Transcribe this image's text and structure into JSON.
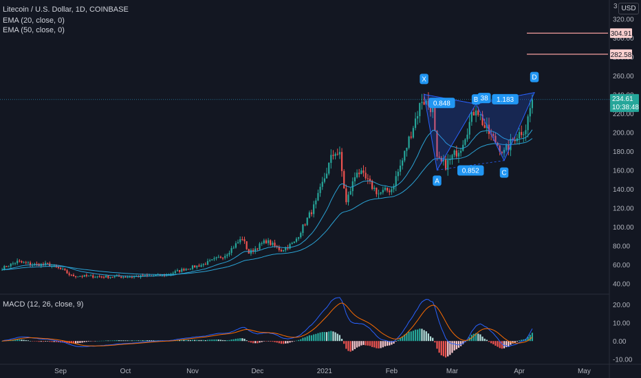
{
  "legend": {
    "symbol": "Litecoin / U.S. Dollar, 1D, COINBASE",
    "ema20": "EMA (20, close, 0)",
    "ema50": "EMA (50, close, 0)",
    "macd": "MACD (12, 26, close, 9)"
  },
  "currency": "USD",
  "price_label": {
    "value": "234.61",
    "countdown": "10:38:48"
  },
  "levels": [
    {
      "label": "304.91",
      "value": 304.91
    },
    {
      "label": "282.58",
      "value": 282.58
    }
  ],
  "colors": {
    "background": "#131722",
    "up": "#26a69a",
    "down": "#ef5350",
    "ema_line": "#2ba4d6",
    "pattern": "#2962ff",
    "macd_line": "#2962ff",
    "signal_line": "#ff6d00",
    "level_line": "#f7a1a0"
  },
  "chart_data": {
    "type": "candlestick",
    "price_axis": {
      "ticks": [
        "40.00",
        "60.00",
        "80.00",
        "100.00",
        "120.00",
        "140.00",
        "160.00",
        "180.00",
        "200.00",
        "220.00",
        "240.00",
        "260.00",
        "280.00",
        "300.00",
        "320.00"
      ],
      "range": [
        30,
        340
      ],
      "partial_top_tick": "3"
    },
    "time_axis": {
      "ticks": [
        "Sep",
        "Oct",
        "Nov",
        "Dec",
        "2021",
        "Feb",
        "Mar",
        "Apr",
        "May"
      ]
    },
    "price_anchors": [
      [
        "2020-08-05",
        56
      ],
      [
        "2020-08-12",
        63
      ],
      [
        "2020-08-19",
        60
      ],
      [
        "2020-08-26",
        60
      ],
      [
        "2020-09-02",
        54
      ],
      [
        "2020-09-06",
        48
      ],
      [
        "2020-09-20",
        47
      ],
      [
        "2020-10-05",
        47
      ],
      [
        "2020-10-20",
        49
      ],
      [
        "2020-10-28",
        55
      ],
      [
        "2020-11-06",
        60
      ],
      [
        "2020-11-16",
        70
      ],
      [
        "2020-11-24",
        88
      ],
      [
        "2020-11-27",
        72
      ],
      [
        "2020-12-05",
        85
      ],
      [
        "2020-12-12",
        75
      ],
      [
        "2020-12-18",
        83
      ],
      [
        "2020-12-28",
        125
      ],
      [
        "2021-01-04",
        172
      ],
      [
        "2021-01-06",
        180
      ],
      [
        "2021-01-08",
        175
      ],
      [
        "2021-01-11",
        125
      ],
      [
        "2021-01-16",
        160
      ],
      [
        "2021-01-26",
        135
      ],
      [
        "2021-02-01",
        140
      ],
      [
        "2021-02-06",
        170
      ],
      [
        "2021-02-10",
        200
      ],
      [
        "2021-02-15",
        235
      ],
      [
        "2021-02-20",
        225
      ],
      [
        "2021-02-22",
        170
      ],
      [
        "2021-02-26",
        165
      ],
      [
        "2021-03-05",
        185
      ],
      [
        "2021-03-12",
        228
      ],
      [
        "2021-03-16",
        205
      ],
      [
        "2021-03-25",
        178
      ],
      [
        "2021-03-30",
        195
      ],
      [
        "2021-04-04",
        205
      ],
      [
        "2021-04-07",
        234.61
      ]
    ],
    "harmonic_pattern": {
      "points": [
        {
          "label": "X",
          "date": "2021-02-16",
          "price": 240
        },
        {
          "label": "A",
          "date": "2021-02-22",
          "price": 160
        },
        {
          "label": "B",
          "date": "2021-03-12",
          "price": 230
        },
        {
          "label": "C",
          "date": "2021-03-25",
          "price": 170
        },
        {
          "label": "D",
          "date": "2021-04-08",
          "price": 242
        }
      ],
      "ratios": [
        "0.848",
        "0.852",
        "1.183"
      ],
      "extra_label": "38"
    },
    "macd": {
      "axis_ticks": [
        "-10.00",
        "0.00",
        "10.00",
        "20.00"
      ],
      "range": [
        -12,
        25
      ],
      "params": "12, 26, close, 9"
    }
  }
}
